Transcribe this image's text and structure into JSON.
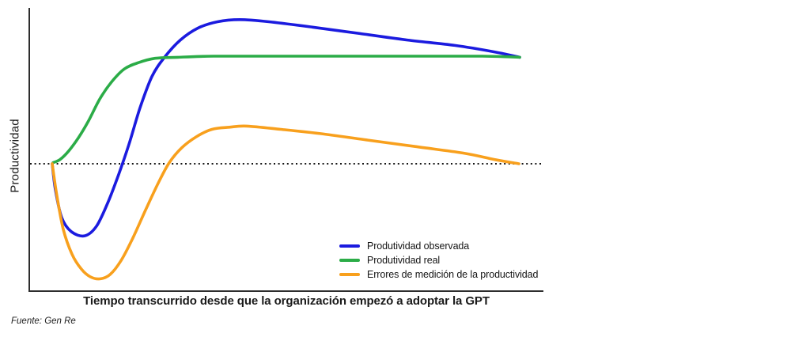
{
  "chart_data": {
    "type": "line",
    "title": "",
    "xlabel": "Tiempo transcurrido desde que la organización empezó a adoptar la GPT",
    "ylabel": "Productividad",
    "source": "Fuente: Gen Re",
    "x_axis": {
      "unit": "time (relative, 0-100)",
      "ticks": false,
      "range": [
        0,
        100
      ]
    },
    "y_axis": {
      "unit": "productivity (baseline = 0, long-run real gain = 1)",
      "ticks": false,
      "baseline_value": 0
    },
    "grid": false,
    "legend_position": "inside-bottom-right",
    "baseline": {
      "style": "dotted",
      "value": 0,
      "color": "#151515"
    },
    "axis_color": "#2d2d2d",
    "series": [
      {
        "name": "Produtividad observada",
        "color": "#1b1bdf",
        "points": [
          [
            4.46,
            0
          ],
          [
            5.08,
            -0.24
          ],
          [
            6.31,
            -0.5
          ],
          [
            8.15,
            -0.63
          ],
          [
            10.77,
            -0.67
          ],
          [
            13.08,
            -0.58
          ],
          [
            15.38,
            -0.35
          ],
          [
            17.38,
            -0.1
          ],
          [
            19.38,
            0.18
          ],
          [
            21.54,
            0.52
          ],
          [
            23.85,
            0.81
          ],
          [
            26.31,
            0.99
          ],
          [
            29.38,
            1.15
          ],
          [
            32.77,
            1.26
          ],
          [
            36.62,
            1.32
          ],
          [
            40.92,
            1.34
          ],
          [
            46.62,
            1.32
          ],
          [
            55.08,
            1.27
          ],
          [
            64.31,
            1.21
          ],
          [
            73.54,
            1.15
          ],
          [
            82.77,
            1.1
          ],
          [
            90.46,
            1.04
          ],
          [
            95.38,
            0.99
          ]
        ]
      },
      {
        "name": "Produtividad real",
        "color": "#2bac47",
        "points": [
          [
            4.62,
            0.01
          ],
          [
            6.0,
            0.04
          ],
          [
            7.69,
            0.12
          ],
          [
            9.54,
            0.24
          ],
          [
            11.54,
            0.4
          ],
          [
            13.69,
            0.6
          ],
          [
            16.0,
            0.76
          ],
          [
            18.46,
            0.88
          ],
          [
            21.23,
            0.94
          ],
          [
            24.46,
            0.98
          ],
          [
            28.92,
            0.99
          ],
          [
            35.85,
            1.0
          ],
          [
            46.62,
            1.0
          ],
          [
            62.0,
            1.0
          ],
          [
            77.38,
            1.0
          ],
          [
            88.15,
            1.0
          ],
          [
            95.38,
            0.99
          ]
        ]
      },
      {
        "name": "Errores de medición de la productividad",
        "color": "#f8a01d",
        "points": [
          [
            4.46,
            0
          ],
          [
            5.38,
            -0.3
          ],
          [
            6.62,
            -0.61
          ],
          [
            8.31,
            -0.84
          ],
          [
            10.15,
            -0.98
          ],
          [
            11.85,
            -1.05
          ],
          [
            13.69,
            -1.07
          ],
          [
            15.69,
            -1.03
          ],
          [
            17.85,
            -0.9
          ],
          [
            20.15,
            -0.69
          ],
          [
            22.62,
            -0.43
          ],
          [
            25.08,
            -0.18
          ],
          [
            27.23,
            0.01
          ],
          [
            29.69,
            0.15
          ],
          [
            32.46,
            0.25
          ],
          [
            35.54,
            0.32
          ],
          [
            38.92,
            0.34
          ],
          [
            42.31,
            0.35
          ],
          [
            48.92,
            0.32
          ],
          [
            56.62,
            0.28
          ],
          [
            65.85,
            0.22
          ],
          [
            75.08,
            0.16
          ],
          [
            84.31,
            0.1
          ],
          [
            90.46,
            0.04
          ],
          [
            95.23,
            0
          ]
        ]
      }
    ]
  }
}
